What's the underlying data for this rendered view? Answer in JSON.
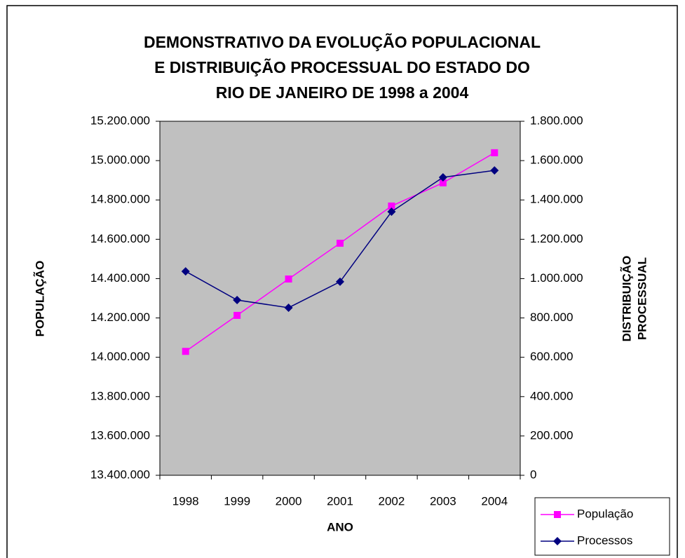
{
  "chart_data": {
    "type": "line",
    "title": [
      "DEMONSTRATIVO DA EVOLUÇÃO POPULACIONAL",
      "E DISTRIBUIÇÃO PROCESSUAL DO ESTADO DO",
      "RIO DE JANEIRO DE 1998 a 2004"
    ],
    "xlabel": "ANO",
    "ylabel": "POPULAÇÃO",
    "y2label": [
      "DISTRIBUIÇÃO",
      "PROCESSUAL"
    ],
    "categories": [
      "1998",
      "1999",
      "2000",
      "2001",
      "2002",
      "2003",
      "2004"
    ],
    "series": [
      {
        "name": "População",
        "color": "#ff00ff",
        "marker": "square",
        "values": [
          14030000,
          14213000,
          14398000,
          14580000,
          14769000,
          14887000,
          15040000
        ]
      },
      {
        "name": "Processos",
        "color": "#000080",
        "marker": "diamond",
        "axis": "y2",
        "values": [
          1037000,
          891000,
          852000,
          984000,
          1340000,
          1515000,
          1550000
        ]
      }
    ],
    "ylim": [
      13400000,
      15200000
    ],
    "yticks": [
      {
        "value": 13400000,
        "label": "13.400.000"
      },
      {
        "value": 13600000,
        "label": "13.600.000"
      },
      {
        "value": 13800000,
        "label": "13.800.000"
      },
      {
        "value": 14000000,
        "label": "14.000.000"
      },
      {
        "value": 14200000,
        "label": "14.200.000"
      },
      {
        "value": 14400000,
        "label": "14.400.000"
      },
      {
        "value": 14600000,
        "label": "14.600.000"
      },
      {
        "value": 14800000,
        "label": "14.800.000"
      },
      {
        "value": 15000000,
        "label": "15.000.000"
      },
      {
        "value": 15200000,
        "label": "15.200.000"
      }
    ],
    "y2lim": [
      0,
      1800000
    ],
    "y2ticks": [
      0,
      {
        "value": 200000,
        "label": "200.000"
      },
      {
        "value": 400000,
        "label": "400.000"
      },
      {
        "value": 600000,
        "label": "600.000"
      },
      {
        "value": 800000,
        "label": "800.000"
      },
      {
        "value": 1000000,
        "label": "1.000.000"
      },
      {
        "value": 1200000,
        "label": "1.200.000"
      },
      {
        "value": 1400000,
        "label": "1.400.000"
      },
      {
        "value": 1600000,
        "label": "1.600.000"
      },
      {
        "value": 1800000,
        "label": "1.800.000"
      }
    ],
    "plot_background": "#c0c0c0",
    "grid": false,
    "legend": "lower right"
  }
}
